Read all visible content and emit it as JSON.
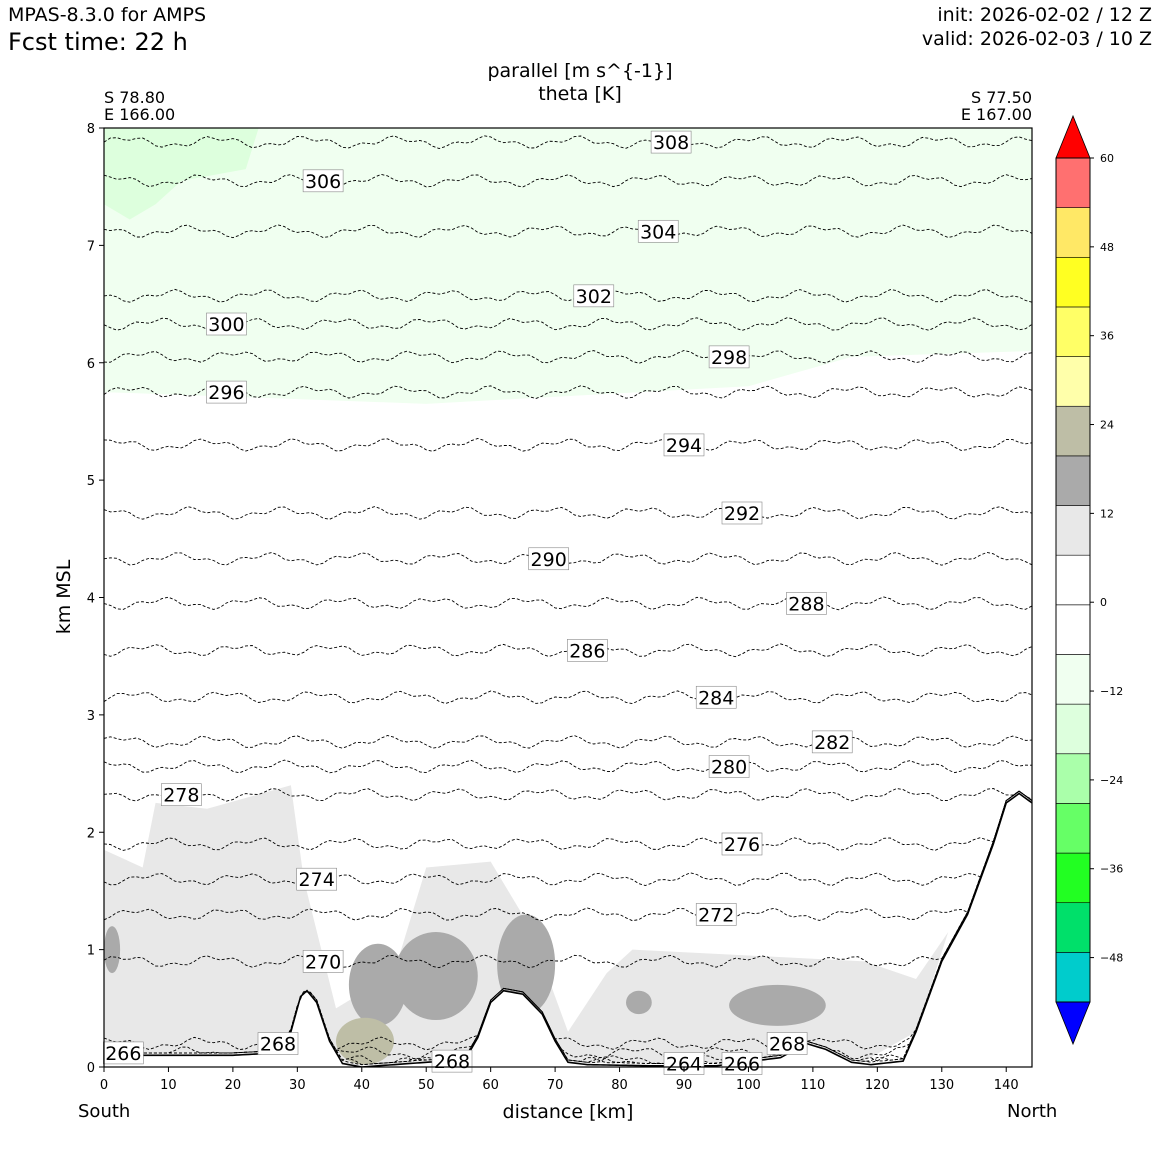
{
  "header": {
    "model": "MPAS-8.3.0 for AMPS",
    "fcst_time": "Fcst time:   22 h",
    "init": "init: 2026-02-02 / 12 Z",
    "valid": "valid: 2026-02-03 / 10 Z"
  },
  "endpoints": {
    "left_lat": "S 78.80",
    "left_lon": "E 166.00",
    "right_lat": "S 77.50",
    "right_lon": "E 167.00",
    "left_dir": "South",
    "right_dir": "North"
  },
  "chart_data": {
    "type": "cross-section",
    "title": [
      "parallel [m s^{-1}]",
      "theta [K]"
    ],
    "xlabel": "distance [km]",
    "ylabel": "km MSL",
    "xlim": [
      0,
      144
    ],
    "ylim": [
      0,
      8
    ],
    "xticks": [
      "0",
      "10",
      "20",
      "30",
      "40",
      "50",
      "60",
      "70",
      "80",
      "90",
      "100",
      "110",
      "120",
      "130",
      "140"
    ],
    "yticks": [
      "0",
      "1",
      "2",
      "3",
      "4",
      "5",
      "6",
      "7",
      "8"
    ],
    "terrain": [
      [
        0,
        0.1
      ],
      [
        10,
        0.1
      ],
      [
        20,
        0.1
      ],
      [
        27,
        0.12
      ],
      [
        29,
        0.3
      ],
      [
        30.5,
        0.6
      ],
      [
        31.5,
        0.65
      ],
      [
        33,
        0.55
      ],
      [
        35,
        0.22
      ],
      [
        37,
        0.03
      ],
      [
        40,
        0
      ],
      [
        45,
        0.02
      ],
      [
        50,
        0.04
      ],
      [
        56,
        0.06
      ],
      [
        58,
        0.25
      ],
      [
        60,
        0.55
      ],
      [
        62,
        0.65
      ],
      [
        65,
        0.62
      ],
      [
        68,
        0.45
      ],
      [
        70,
        0.22
      ],
      [
        72,
        0.04
      ],
      [
        75,
        0.02
      ],
      [
        85,
        0.01
      ],
      [
        95,
        0.01
      ],
      [
        105,
        0.08
      ],
      [
        109,
        0.2
      ],
      [
        112,
        0.15
      ],
      [
        116,
        0.04
      ],
      [
        119,
        0.02
      ],
      [
        124,
        0.05
      ],
      [
        126,
        0.3
      ],
      [
        130,
        0.9
      ],
      [
        134,
        1.3
      ],
      [
        138,
        1.9
      ],
      [
        140,
        2.25
      ],
      [
        142,
        2.33
      ],
      [
        144,
        2.25
      ]
    ],
    "theta_contours": [
      {
        "label": "308",
        "y": 7.88,
        "label_x": 88
      },
      {
        "label": "306",
        "y": 7.55,
        "label_x": 34
      },
      {
        "label": "304",
        "y": 7.12,
        "label_x": 86
      },
      {
        "label": "302",
        "y": 6.57,
        "label_x": 76
      },
      {
        "label": "300",
        "y": 6.33,
        "label_x": 19
      },
      {
        "label": "298",
        "y": 6.05,
        "label_x": 97
      },
      {
        "label": "296",
        "y": 5.75,
        "label_x": 19
      },
      {
        "label": "294",
        "y": 5.3,
        "label_x": 90
      },
      {
        "label": "292",
        "y": 4.72,
        "label_x": 99
      },
      {
        "label": "290",
        "y": 4.33,
        "label_x": 69
      },
      {
        "label": "288",
        "y": 3.95,
        "label_x": 109
      },
      {
        "label": "286",
        "y": 3.55,
        "label_x": 75
      },
      {
        "label": "284",
        "y": 3.15,
        "label_x": 95
      },
      {
        "label": "282",
        "y": 2.77,
        "label_x": 113
      },
      {
        "label": "280",
        "y": 2.56,
        "label_x": 97
      },
      {
        "label": "278",
        "y": 2.32,
        "label_x": 12
      },
      {
        "label": "276",
        "y": 1.9,
        "label_x": 99
      },
      {
        "label": "274",
        "y": 1.6,
        "label_x": 33
      },
      {
        "label": "272",
        "y": 1.3,
        "label_x": 95
      },
      {
        "label": "270",
        "y": 0.9,
        "label_x": 34
      },
      {
        "label": "268",
        "y": 0.2,
        "label_x": 27
      },
      {
        "label": "266",
        "y": 0.12,
        "label_x": 3
      },
      {
        "label": "268",
        "y": 0.05,
        "label_x": 54
      },
      {
        "label": "264",
        "y": 0.03,
        "label_x": 90
      },
      {
        "label": "266",
        "y": 0.03,
        "label_x": 99
      },
      {
        "label": "268",
        "y": 0.2,
        "label_x": 106
      }
    ],
    "shading_regions": [
      {
        "name": "light-green-upper",
        "value_range": "-12 to -6",
        "x": [
          0,
          144
        ],
        "y": [
          5.75,
          8
        ]
      },
      {
        "name": "green-corner",
        "value_range": "-18 to -12",
        "x": [
          0,
          24
        ],
        "y": [
          7.2,
          8
        ]
      },
      {
        "name": "light-gray-low",
        "value_range": "6 to 12",
        "x": [
          0,
          140
        ],
        "y": [
          0,
          2.4
        ]
      },
      {
        "name": "gray-core",
        "value_range": "12 to 18",
        "x": [
          32,
          118
        ],
        "y": [
          0.3,
          1.3
        ]
      },
      {
        "name": "tan-core",
        "value_range": "18 to 24",
        "x": [
          36,
          45
        ],
        "y": [
          0.05,
          0.45
        ]
      }
    ],
    "colorbar": {
      "min": -60,
      "max": 60,
      "step": 6,
      "tick_labels": [
        "60",
        "48",
        "36",
        "24",
        "12",
        "0",
        "−12",
        "−24",
        "−36",
        "−48"
      ],
      "colors": [
        "#0000ff",
        "#00cccc",
        "#00e06a",
        "#22ff22",
        "#66ff66",
        "#aaffaa",
        "#ddffdd",
        "#f0fff0",
        "#ffffff",
        "#ffffff",
        "#e8e8e8",
        "#aaaaaa",
        "#bebea6",
        "#ffffaa",
        "#ffff66",
        "#ffff22",
        "#ffe866",
        "#ff7070",
        "#ff0000"
      ]
    }
  }
}
